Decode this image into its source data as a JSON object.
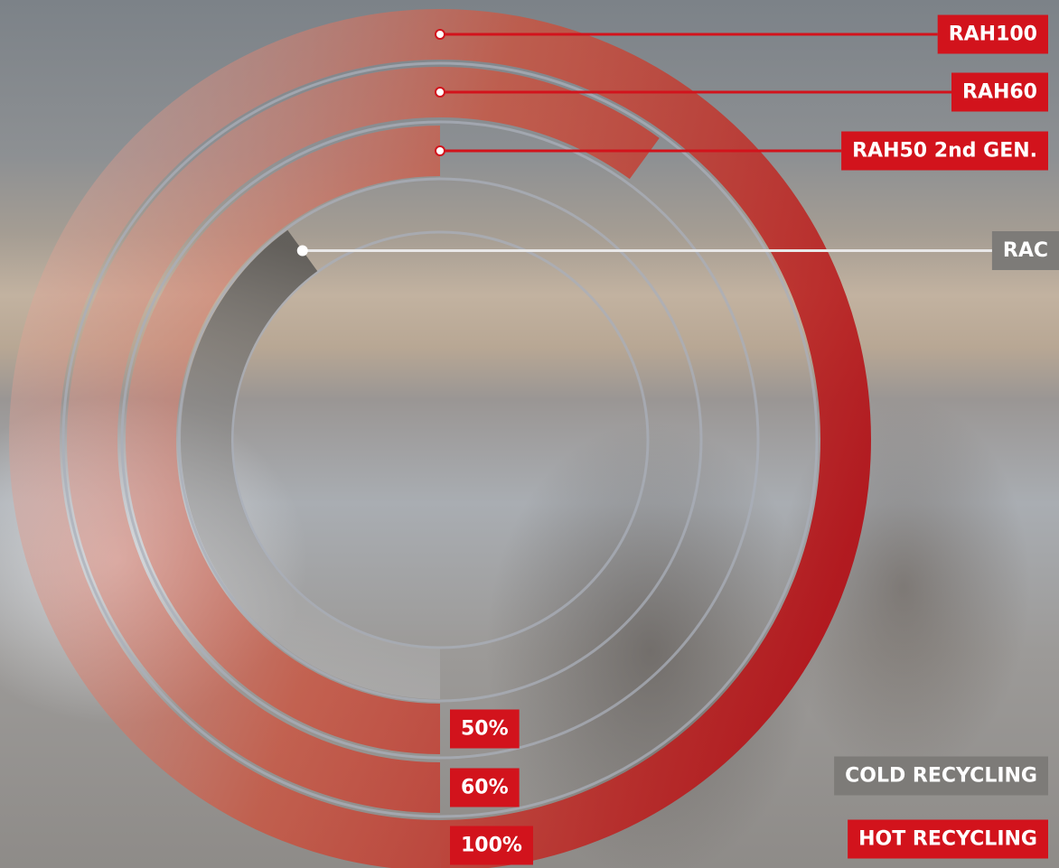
{
  "chart_data": {
    "type": "radial_bar",
    "categories": [
      "RAH100",
      "RAH60",
      "RAH50 2nd GEN.",
      "RAC"
    ],
    "values": [
      100,
      60,
      50,
      40
    ],
    "value_labels": [
      "100%",
      "60%",
      "50%",
      null
    ],
    "groups": [
      1,
      1,
      1,
      0
    ],
    "rlim": [
      0,
      100
    ],
    "legend": [
      {
        "name": "COLD RECYCLING",
        "color": "#6f6d6a"
      },
      {
        "name": "HOT RECYCLING",
        "color": "#d2131c"
      }
    ]
  }
}
